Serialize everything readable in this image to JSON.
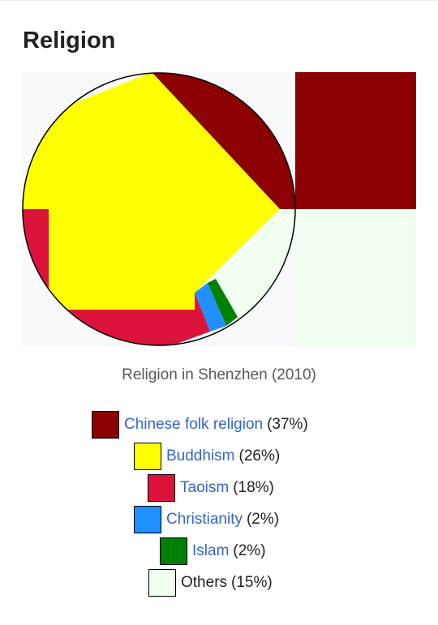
{
  "section": {
    "title": "Religion"
  },
  "chart_data": {
    "type": "pie",
    "caption": "Religion in Shenzhen (2010)",
    "slices": [
      {
        "label": "Chinese folk religion",
        "value": 37,
        "color": "#8b0000",
        "link": true
      },
      {
        "label": "Buddhism",
        "value": 26,
        "color": "#ffff00",
        "link": true
      },
      {
        "label": "Taoism",
        "value": 18,
        "color": "#dc143c",
        "link": true
      },
      {
        "label": "Christianity",
        "value": 2,
        "color": "#1e90ff",
        "link": true
      },
      {
        "label": "Islam",
        "value": 2,
        "color": "#008000",
        "link": true
      },
      {
        "label": "Others",
        "value": 15,
        "color": "#f0fff0",
        "link": false
      }
    ],
    "legend": [
      {
        "label": "Chinese folk religion",
        "pct": "(37%)"
      },
      {
        "label": "Buddhism",
        "pct": "(26%)"
      },
      {
        "label": "Taoism",
        "pct": "(18%)"
      },
      {
        "label": "Christianity",
        "pct": "(2%)"
      },
      {
        "label": "Islam",
        "pct": "(2%)"
      },
      {
        "label": "Others",
        "pct": "(15%)"
      }
    ]
  }
}
